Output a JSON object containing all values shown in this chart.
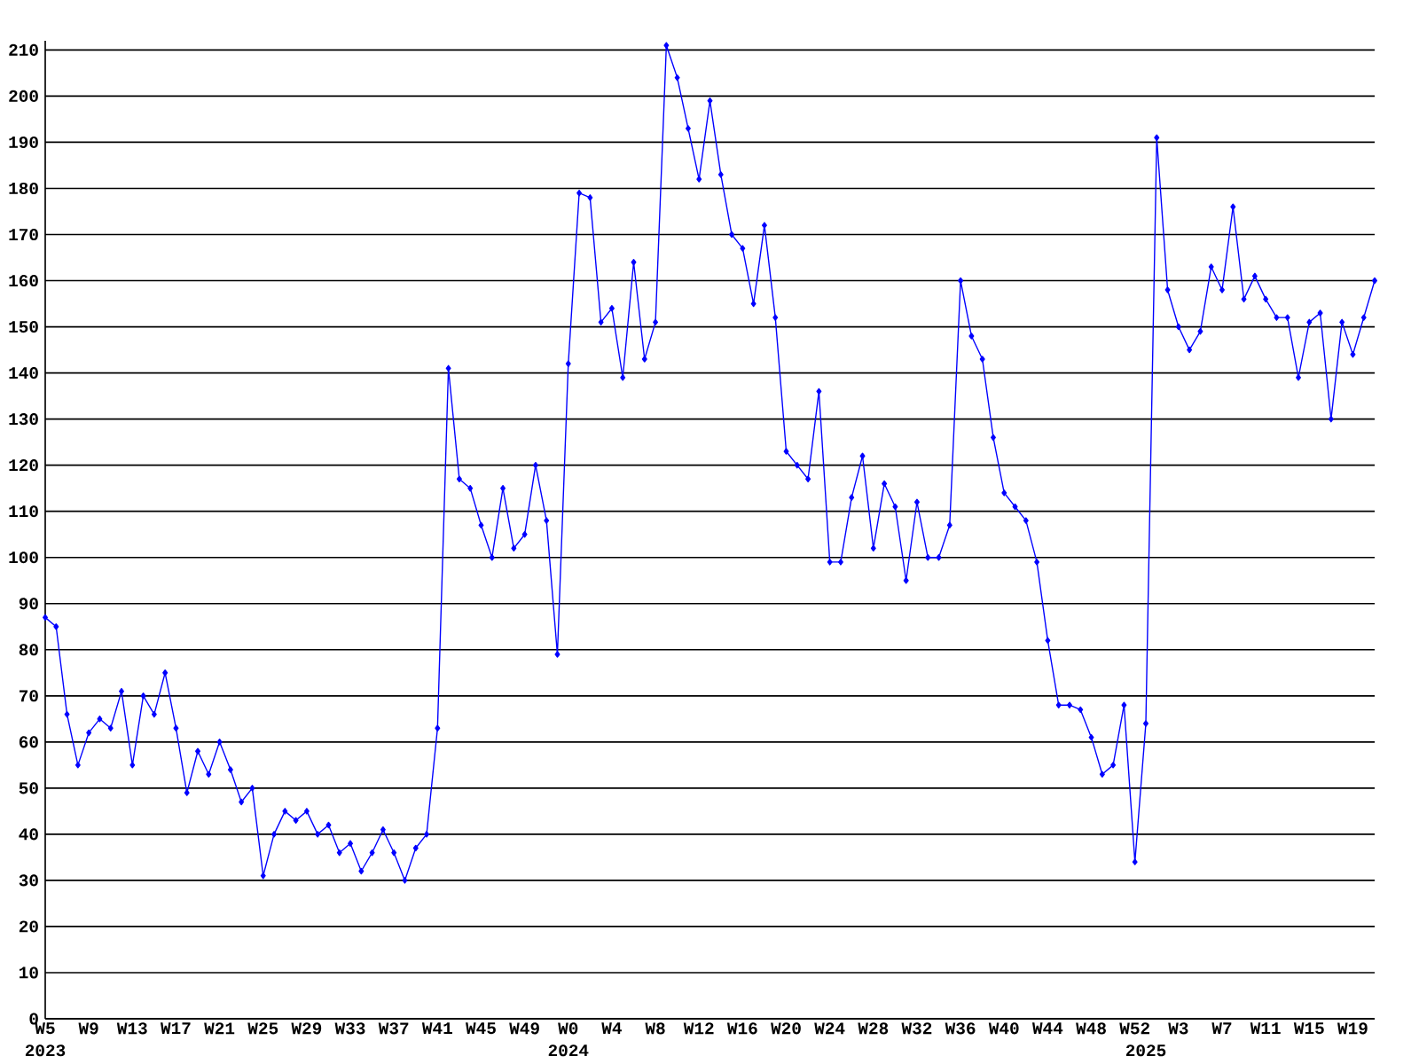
{
  "chart_data": {
    "type": "line",
    "categories": [
      "W5",
      null,
      null,
      null,
      "W9",
      null,
      null,
      null,
      "W13",
      null,
      null,
      null,
      "W17",
      null,
      null,
      null,
      "W21",
      null,
      null,
      null,
      "W25",
      null,
      null,
      null,
      "W29",
      null,
      null,
      null,
      "W33",
      null,
      null,
      null,
      "W37",
      null,
      null,
      null,
      "W41",
      null,
      null,
      null,
      "W45",
      null,
      null,
      null,
      "W49",
      null,
      null,
      null,
      "W0",
      null,
      null,
      null,
      "W4",
      null,
      null,
      null,
      "W8",
      null,
      null,
      null,
      "W12",
      null,
      null,
      null,
      "W16",
      null,
      null,
      null,
      "W20",
      null,
      null,
      null,
      "W24",
      null,
      null,
      null,
      "W28",
      null,
      null,
      null,
      "W32",
      null,
      null,
      null,
      "W36",
      null,
      null,
      null,
      "W40",
      null,
      null,
      null,
      "W44",
      null,
      null,
      null,
      "W48",
      null,
      null,
      null,
      "W52",
      null,
      null,
      null,
      "W3",
      null,
      null,
      null,
      "W7",
      null,
      null,
      null,
      "W11",
      null,
      null,
      null,
      "W15",
      null,
      null,
      null,
      "W19",
      null,
      null
    ],
    "values": [
      87,
      85,
      66,
      55,
      62,
      65,
      63,
      71,
      55,
      70,
      66,
      75,
      63,
      49,
      58,
      53,
      60,
      54,
      47,
      50,
      31,
      40,
      45,
      43,
      45,
      40,
      42,
      36,
      38,
      32,
      36,
      41,
      36,
      30,
      37,
      40,
      63,
      141,
      117,
      115,
      107,
      100,
      115,
      102,
      105,
      120,
      108,
      79,
      142,
      179,
      178,
      151,
      154,
      139,
      164,
      143,
      151,
      211,
      204,
      193,
      182,
      199,
      183,
      170,
      167,
      155,
      172,
      152,
      123,
      120,
      117,
      136,
      99,
      99,
      113,
      122,
      102,
      116,
      111,
      95,
      112,
      100,
      100,
      107,
      160,
      148,
      143,
      126,
      114,
      111,
      108,
      99,
      82,
      68,
      68,
      67,
      61,
      53,
      55,
      68,
      34,
      64,
      191,
      158,
      150,
      145,
      149,
      163,
      158,
      176,
      156,
      161,
      156,
      152,
      152,
      139,
      151,
      153,
      130,
      151,
      144,
      152,
      160
    ],
    "color": "#0000ff",
    "marker": "diamond",
    "line_style": "solid",
    "grid": "y",
    "ylim": [
      0,
      212
    ],
    "yticks": [
      0,
      10,
      20,
      30,
      40,
      50,
      60,
      70,
      80,
      90,
      100,
      110,
      120,
      130,
      140,
      150,
      160,
      170,
      180,
      190,
      200,
      210
    ],
    "x2lim": [
      2023.0943,
      2025.3962
    ],
    "x2ticks": [
      {
        "value": 2023.0943,
        "label": "2023"
      },
      2024,
      2025
    ]
  }
}
